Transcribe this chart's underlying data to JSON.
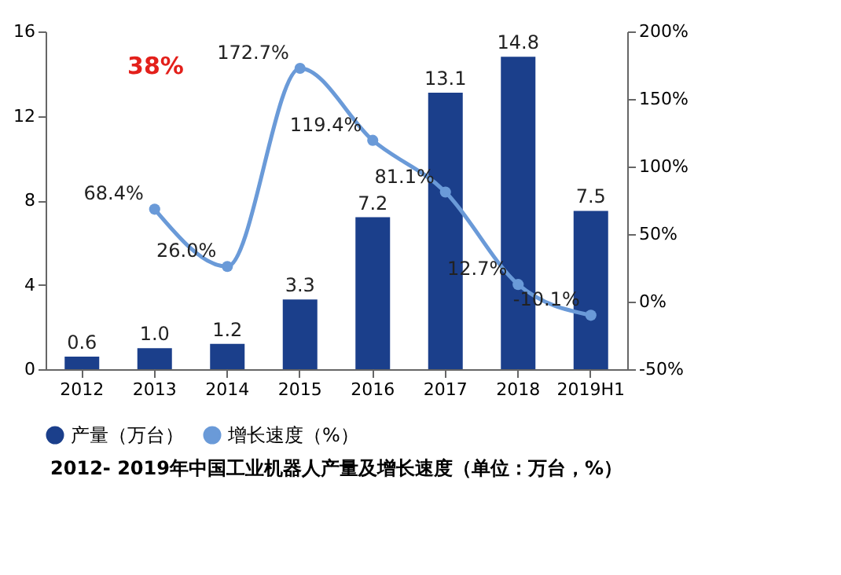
{
  "chart_data": {
    "type": "bar",
    "title": "2012- 2019年中国工业机器人产量及增长速度（单位：万台，%）",
    "categories": [
      "2012",
      "2013",
      "2014",
      "2015",
      "2016",
      "2017",
      "2018",
      "2019H1"
    ],
    "series": [
      {
        "name": "产量（万台）",
        "color": "#1b3f8b",
        "values": [
          0.6,
          1.0,
          1.2,
          3.3,
          7.2,
          13.1,
          14.8,
          7.5
        ],
        "value_labels": [
          "0.6",
          "1.0",
          "1.2",
          "3.3",
          "7.2",
          "13.1",
          "14.8",
          "7.5"
        ]
      },
      {
        "name": "增长速度（%）",
        "type": "line",
        "axis": "y2",
        "color": "#6a9ad8",
        "marker": "circle",
        "values": [
          null,
          68.4,
          26.0,
          172.7,
          119.4,
          81.1,
          12.7,
          -10.1
        ],
        "value_labels": [
          null,
          "68.4%",
          "26.0%",
          "172.7%",
          "119.4%",
          "81.1%",
          "12.7%",
          "-10.1%"
        ]
      }
    ],
    "ylim": [
      0,
      16
    ],
    "yticks": [
      0,
      4,
      8,
      12,
      16
    ],
    "y2lim": [
      -50,
      200
    ],
    "y2ticks": [
      {
        "value": -50,
        "label": "-50%"
      },
      {
        "value": 0,
        "label": "0%"
      },
      {
        "value": 50,
        "label": "50%"
      },
      {
        "value": 100,
        "label": "100%"
      },
      {
        "value": 150,
        "label": "150%"
      },
      {
        "value": 200,
        "label": "200%"
      }
    ],
    "grid": false,
    "legend": "bottom",
    "annotations": [
      "38%"
    ]
  }
}
